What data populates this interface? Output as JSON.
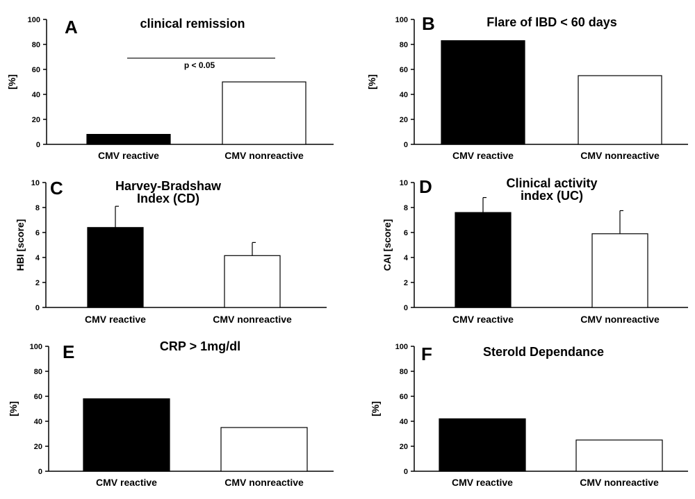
{
  "colors": {
    "reactive": "#000000",
    "nonreactive": "#ffffff",
    "axis": "#000000"
  },
  "chart_data": [
    {
      "type": "bar",
      "letter": "A",
      "title": [
        "clinical remission"
      ],
      "ylabel": "[%]",
      "ylim": [
        0,
        100
      ],
      "yticks": [
        "0",
        "20",
        "40",
        "60",
        "80",
        "100"
      ],
      "tick_values": [
        0,
        20,
        40,
        60,
        80,
        100
      ],
      "categories": [
        "CMV reactive",
        "CMV nonreactive"
      ],
      "values": [
        8,
        50
      ],
      "errors": [
        null,
        null
      ],
      "annotation": {
        "text": "p < 0.05",
        "level": 69
      }
    },
    {
      "type": "bar",
      "letter": "B",
      "title": [
        "Flare of IBD < 60 days"
      ],
      "ylabel": "[%]",
      "ylim": [
        0,
        100
      ],
      "yticks": [
        "0",
        "20",
        "40",
        "60",
        "80",
        "100"
      ],
      "tick_values": [
        0,
        20,
        40,
        60,
        80,
        100
      ],
      "categories": [
        "CMV reactive",
        "CMV nonreactive"
      ],
      "values": [
        83,
        55
      ],
      "errors": [
        null,
        null
      ]
    },
    {
      "type": "bar",
      "letter": "C",
      "title": [
        "Harvey-Bradshaw",
        "Index (CD)"
      ],
      "ylabel": "HBI [score]",
      "ylim": [
        0,
        10
      ],
      "yticks": [
        "0",
        "2",
        "4",
        "6",
        "8",
        "10"
      ],
      "tick_values": [
        0,
        2,
        4,
        6,
        8,
        10
      ],
      "categories": [
        "CMV reactive",
        "CMV nonreactive"
      ],
      "values": [
        6.4,
        4.15
      ],
      "errors": [
        1.7,
        1.05
      ]
    },
    {
      "type": "bar",
      "letter": "D",
      "title": [
        "Clinical activity",
        "index (UC)"
      ],
      "ylabel": "CAI [score]",
      "ylim": [
        0,
        10
      ],
      "yticks": [
        "0",
        "2",
        "4",
        "6",
        "8",
        "10"
      ],
      "tick_values": [
        0,
        2,
        4,
        6,
        8,
        10
      ],
      "categories": [
        "CMV reactive",
        "CMV nonreactive"
      ],
      "values": [
        7.6,
        5.9
      ],
      "errors": [
        1.2,
        1.85
      ]
    },
    {
      "type": "bar",
      "letter": "E",
      "title": [
        "CRP > 1mg/dl"
      ],
      "ylabel": "[%]",
      "ylim": [
        0,
        100
      ],
      "yticks": [
        "0",
        "20",
        "40",
        "60",
        "80",
        "100"
      ],
      "tick_values": [
        0,
        20,
        40,
        60,
        80,
        100
      ],
      "categories": [
        "CMV reactive",
        "CMV nonreactive"
      ],
      "values": [
        58,
        35
      ],
      "errors": [
        null,
        null
      ]
    },
    {
      "type": "bar",
      "letter": "F",
      "title": [
        "Sterold Dependance"
      ],
      "ylabel": "[%]",
      "ylim": [
        0,
        100
      ],
      "yticks": [
        "0",
        "20",
        "40",
        "60",
        "80",
        "100"
      ],
      "tick_values": [
        0,
        20,
        40,
        60,
        80,
        100
      ],
      "categories": [
        "CMV reactive",
        "CMV nonreactive"
      ],
      "values": [
        42,
        25
      ],
      "errors": [
        null,
        null
      ]
    }
  ]
}
